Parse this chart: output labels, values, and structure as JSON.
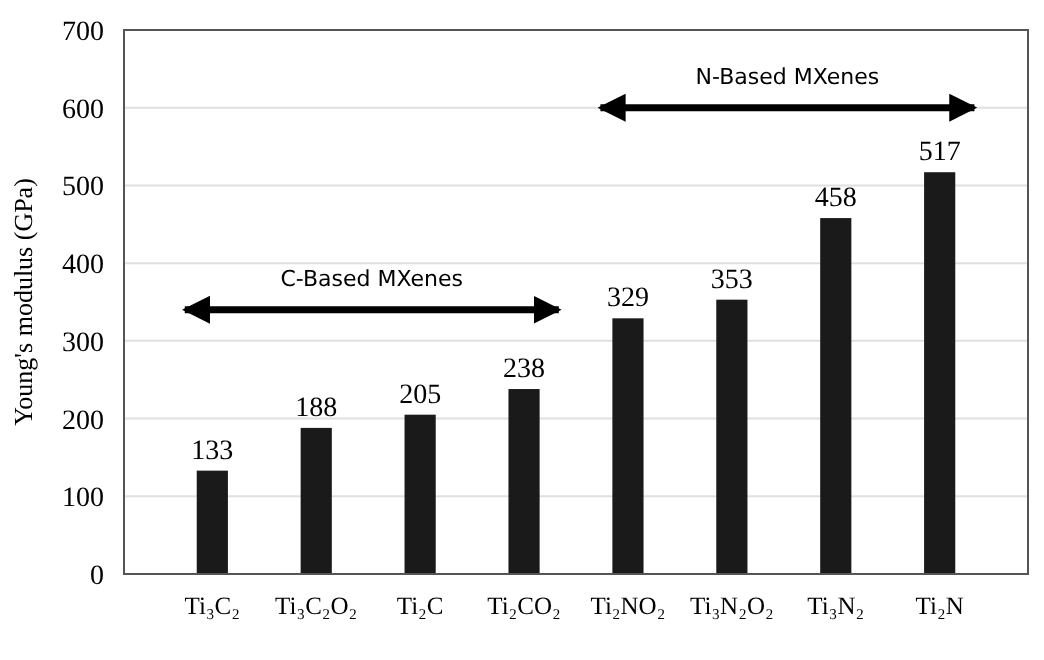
{
  "chart_data": {
    "type": "bar",
    "ylabel": "Young's modulus (GPa)",
    "categories": [
      "Ti₃C₂",
      "Ti₃C₂O₂",
      "Ti₂C",
      "Ti₂CO₂",
      "Ti₂NO₂",
      "Ti₃N₂O₂",
      "Ti₃N₂",
      "Ti₂N"
    ],
    "values": [
      133,
      188,
      205,
      238,
      329,
      353,
      458,
      517
    ],
    "color": "#1a1a1a",
    "data_labels": true,
    "ylim": [
      0,
      700
    ],
    "yticks": [
      0,
      100,
      200,
      300,
      400,
      500,
      600,
      700
    ],
    "grid": "y",
    "annotations": [
      "C-Based MXenes",
      "N-Based MXenes"
    ]
  }
}
